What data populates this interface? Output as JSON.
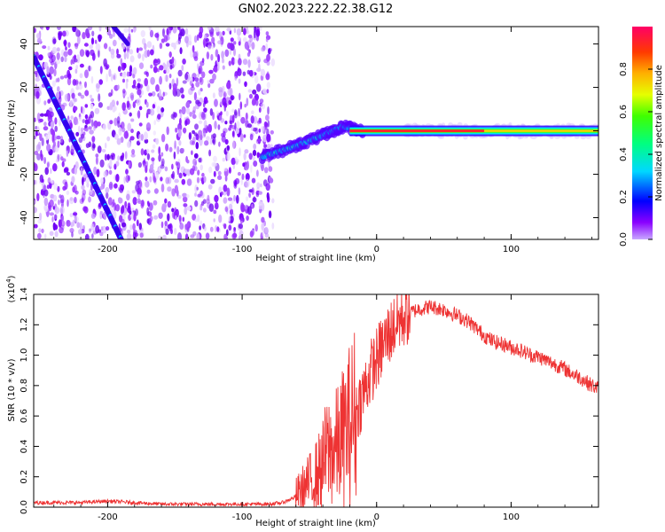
{
  "title": "GN02.2023.222.22.38.G12",
  "colors": {
    "signal_line": "#ff2d2d",
    "snr_line": "#ee3333",
    "noise_purple": "#7a00ff",
    "noise_light": "#d9b8ff",
    "background": "#ffffff"
  },
  "chart_data": [
    {
      "type": "heatmap",
      "title": "GN02.2023.222.22.38.G12",
      "xlabel": "Height of straight line (km)",
      "ylabel": "Frequency (Hz)",
      "xlim": [
        -255,
        165
      ],
      "ylim": [
        -50,
        48
      ],
      "x_ticks": [
        -200,
        -100,
        0,
        100
      ],
      "y_ticks": [
        -40,
        -20,
        0,
        20,
        40
      ],
      "x_tick_labels": [
        "-200",
        "-100",
        "0",
        "100"
      ],
      "y_tick_labels": [
        "-40",
        "-20",
        "0",
        "20",
        "40"
      ],
      "noise_region_x": [
        -255,
        -77
      ],
      "diagonal_track": {
        "x": [
          -255,
          -190
        ],
        "frequency": [
          34,
          -50
        ]
      },
      "converging_track": {
        "x": [
          -85,
          -60,
          -40,
          -25,
          -10
        ],
        "frequency": [
          -12,
          -7,
          -2,
          2,
          0
        ]
      },
      "carrier": {
        "x": [
          -20,
          165
        ],
        "frequency": 0
      },
      "colorbar": {
        "label": "Normalized spectral amplitude",
        "range": [
          0,
          1
        ],
        "ticks": [
          0.0,
          0.2,
          0.4,
          0.6,
          0.8
        ],
        "tick_labels": [
          "0.0",
          "0.2",
          "0.4",
          "0.6",
          "0.8"
        ]
      }
    },
    {
      "type": "line",
      "xlabel": "Height of straight line (km)",
      "ylabel": "SNR (10 * v/v)",
      "scale_label": "(x10",
      "scale_exponent": "4",
      "scale_close": ")",
      "xlim": [
        -255,
        165
      ],
      "ylim": [
        0,
        1.4
      ],
      "x_ticks": [
        -200,
        -100,
        0,
        100
      ],
      "y_ticks": [
        0.0,
        0.2,
        0.4,
        0.6,
        0.8,
        1.0,
        1.2,
        1.4
      ],
      "x_tick_labels": [
        "-200",
        "-100",
        "0",
        "100"
      ],
      "y_tick_labels": [
        "0.0",
        "0.2",
        "0.4",
        "0.6",
        "0.8",
        "1.0",
        "1.2",
        "1.4"
      ],
      "series": [
        {
          "x": [
            -255,
            -240,
            -220,
            -200,
            -180,
            -160,
            -140,
            -120,
            -100,
            -80,
            -70,
            -62,
            -55,
            -48,
            -44,
            -40,
            -38,
            -35,
            -32,
            -28,
            -24,
            -20,
            -16,
            -12,
            -8,
            -4,
            0,
            4,
            8,
            12,
            16,
            20,
            25,
            30,
            35,
            40,
            45,
            50,
            55,
            60,
            65,
            70,
            75,
            80,
            85,
            90,
            95,
            100,
            105,
            110,
            115,
            120,
            125,
            130,
            135,
            140,
            145,
            150,
            155,
            160,
            165
          ],
          "values": [
            0.03,
            0.03,
            0.03,
            0.04,
            0.03,
            0.02,
            0.02,
            0.02,
            0.02,
            0.02,
            0.03,
            0.06,
            0.12,
            0.18,
            0.22,
            0.28,
            0.34,
            0.38,
            0.36,
            0.42,
            0.48,
            0.55,
            0.62,
            0.7,
            0.8,
            0.9,
            0.97,
            1.05,
            1.12,
            1.18,
            1.22,
            1.26,
            1.28,
            1.3,
            1.31,
            1.32,
            1.31,
            1.3,
            1.28,
            1.26,
            1.24,
            1.21,
            1.17,
            1.13,
            1.1,
            1.08,
            1.07,
            1.05,
            1.04,
            1.02,
            1.0,
            0.99,
            0.97,
            0.95,
            0.93,
            0.91,
            0.88,
            0.86,
            0.83,
            0.8,
            0.78
          ]
        }
      ]
    }
  ]
}
